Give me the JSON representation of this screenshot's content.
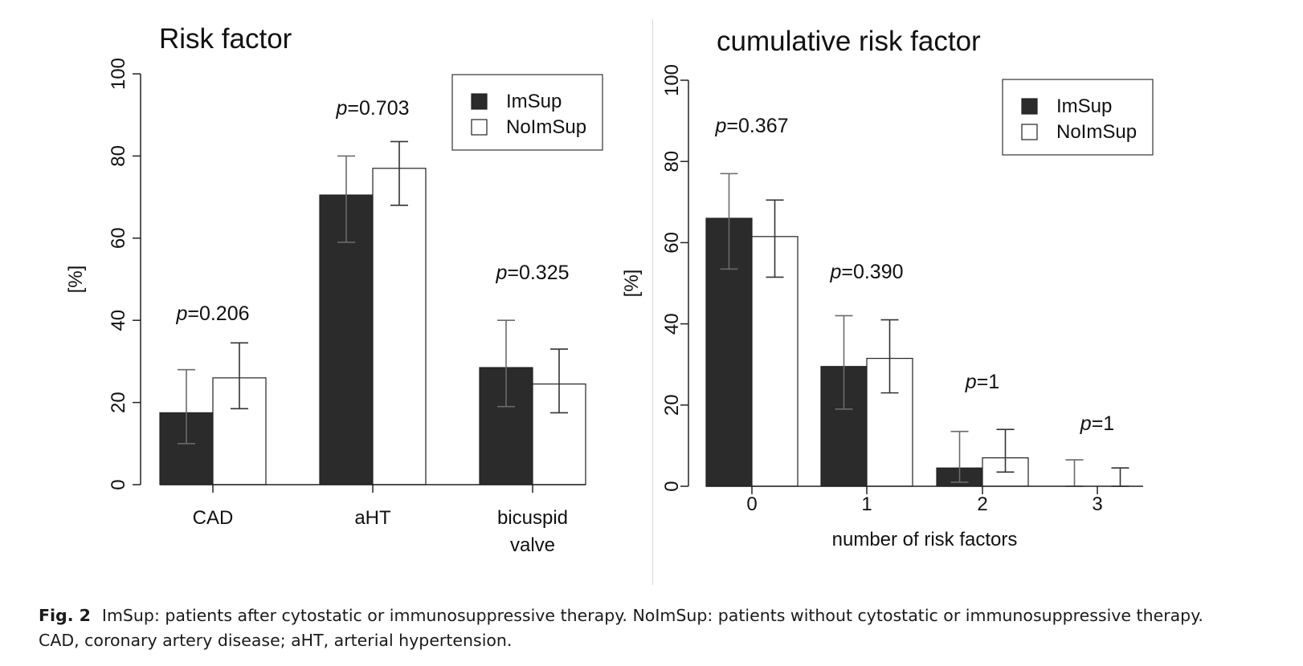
{
  "colors": {
    "imsup": "#2b2b2b",
    "noimsup": "#ffffff",
    "axis": "#222222",
    "error_bar": "#333333"
  },
  "chart_data": [
    {
      "type": "bar",
      "title": "Risk factor",
      "xlabel": "",
      "ylabel": "[%]",
      "ylim": [
        0,
        100
      ],
      "yticks": [
        0,
        20,
        40,
        60,
        80,
        100
      ],
      "legend": {
        "placement": "top-right",
        "entries": [
          "ImSup",
          "NoImSup"
        ]
      },
      "categories": [
        {
          "label": "CAD",
          "lines": [
            "CAD"
          ]
        },
        {
          "label": "aHT",
          "lines": [
            "aHT"
          ]
        },
        {
          "label": "bicuspid valve",
          "lines": [
            "bicuspid",
            "valve"
          ]
        }
      ],
      "series": [
        {
          "name": "ImSup",
          "values": [
            17.5,
            70.5,
            28.5
          ],
          "err_low": [
            10,
            59,
            19
          ],
          "err_high": [
            28,
            80,
            40
          ]
        },
        {
          "name": "NoImSup",
          "values": [
            26,
            77,
            24.5
          ],
          "err_low": [
            18.5,
            68,
            17.5
          ],
          "err_high": [
            34.5,
            83.5,
            33
          ]
        }
      ],
      "annotations": [
        {
          "prefix": "p",
          "text": "=0.206"
        },
        {
          "prefix": "p",
          "text": "=0.703"
        },
        {
          "prefix": "p",
          "text": "=0.325"
        }
      ]
    },
    {
      "type": "bar",
      "title": "cumulative risk factor",
      "xlabel": "number of risk factors",
      "ylabel": "[%]",
      "ylim": [
        0,
        100
      ],
      "yticks": [
        0,
        20,
        40,
        60,
        80,
        100
      ],
      "legend": {
        "placement": "top-right",
        "entries": [
          "ImSup",
          "NoImSup"
        ]
      },
      "categories": [
        {
          "label": "0",
          "lines": [
            "0"
          ]
        },
        {
          "label": "1",
          "lines": [
            "1"
          ]
        },
        {
          "label": "2",
          "lines": [
            "2"
          ]
        },
        {
          "label": "3",
          "lines": [
            "3"
          ]
        }
      ],
      "series": [
        {
          "name": "ImSup",
          "values": [
            66,
            29.5,
            4.5,
            0
          ],
          "err_low": [
            53.5,
            19,
            1,
            0
          ],
          "err_high": [
            77,
            42,
            13.5,
            6.5
          ]
        },
        {
          "name": "NoImSup",
          "values": [
            61.5,
            31.5,
            7,
            0
          ],
          "err_low": [
            51.5,
            23,
            3.5,
            0
          ],
          "err_high": [
            70.5,
            41,
            14,
            4.5
          ]
        }
      ],
      "annotations": [
        {
          "prefix": "p",
          "text": "=0.367"
        },
        {
          "prefix": "p",
          "text": "=0.390"
        },
        {
          "prefix": "p",
          "text": "=1"
        },
        {
          "prefix": "p",
          "text": "=1"
        }
      ]
    }
  ],
  "caption": {
    "label": "Fig. 2",
    "line1": "ImSup: patients after cytostatic or immunosuppressive therapy. NoImSup: patients without cytostatic or immunosuppressive therapy.",
    "line2": "CAD, coronary artery disease; aHT, arterial hypertension."
  }
}
